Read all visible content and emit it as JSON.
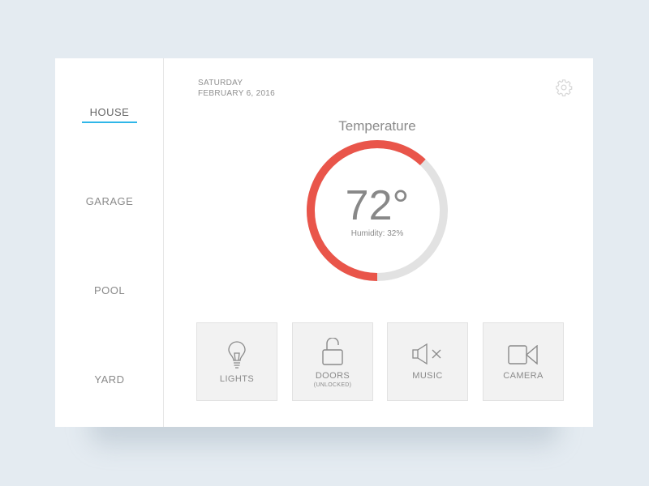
{
  "sidebar": {
    "items": [
      {
        "label": "HOUSE",
        "active": true
      },
      {
        "label": "GARAGE"
      },
      {
        "label": "POOL"
      },
      {
        "label": "YARD"
      }
    ]
  },
  "header": {
    "day": "SATURDAY",
    "date": "FEBRUARY 6, 2016",
    "settings_icon": "gear-icon"
  },
  "temperature": {
    "title": "Temperature",
    "value": "72°",
    "humidity": "Humidity: 32%",
    "gauge_fraction": 0.62,
    "gauge_color": "#e9554a",
    "track_color": "#e2e2e2"
  },
  "tiles": [
    {
      "label": "LIGHTS",
      "icon": "lightbulb-icon"
    },
    {
      "label": "DOORS",
      "sublabel": "(UNLOCKED)",
      "icon": "unlocked-padlock-icon"
    },
    {
      "label": "MUSIC",
      "icon": "speaker-muted-icon"
    },
    {
      "label": "CAMERA",
      "icon": "video-camera-icon"
    }
  ],
  "accent": "#2fb6e8"
}
